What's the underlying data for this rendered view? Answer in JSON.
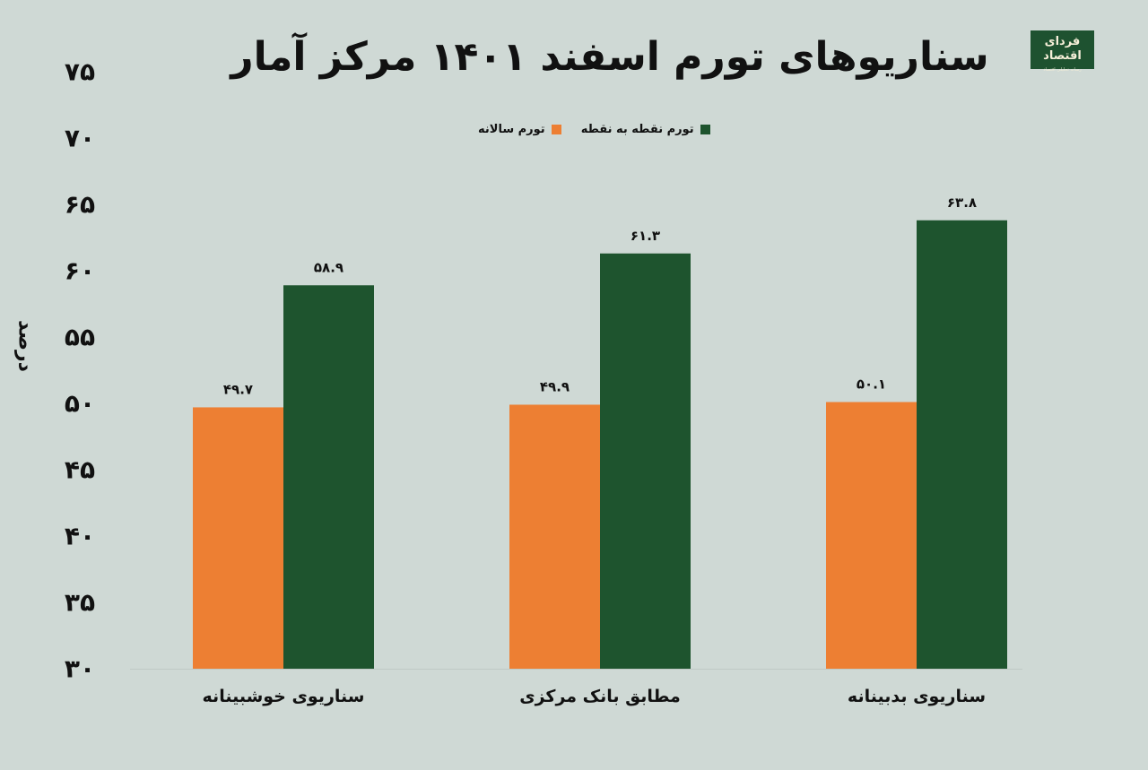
{
  "title": "سناریوهای تورم اسفند ۱۴۰۱ مرکز آمار",
  "logo": {
    "text": "فردای اقتصاد",
    "tagline": "رسانه تحلیلی اقتصاد"
  },
  "legend": [
    {
      "label": "تورم نقطه به نقطه",
      "color": "#1E542E"
    },
    {
      "label": "تورم سالانه",
      "color": "#ED7F33"
    }
  ],
  "chart_data": {
    "type": "bar",
    "title": "سناریوهای تورم اسفند ۱۴۰۱ مرکز آمار",
    "ylabel": "درصد",
    "xlabel": "",
    "ylim": [
      30,
      75
    ],
    "yticks": [
      30,
      35,
      40,
      45,
      50,
      55,
      60,
      65,
      70,
      75
    ],
    "ytick_labels": [
      "۳۰",
      "۳۵",
      "۴۰",
      "۴۵",
      "۵۰",
      "۵۵",
      "۶۰",
      "۶۵",
      "۷۰",
      "۷۵"
    ],
    "grid": false,
    "legend_position": "top-center",
    "categories": [
      "سناریوی خوشبینانه",
      "مطابق بانک مرکزی",
      "سناریوی بدبینانه"
    ],
    "series": [
      {
        "name": "تورم سالانه",
        "color": "#ED7F33",
        "values": [
          49.7,
          49.9,
          50.1
        ],
        "value_labels": [
          "۴۹.۷",
          "۴۹.۹",
          "۵۰.۱"
        ]
      },
      {
        "name": "تورم نقطه به نقطه",
        "color": "#1E542E",
        "values": [
          58.9,
          61.3,
          63.8
        ],
        "value_labels": [
          "۵۸.۹",
          "۶۱.۳",
          "۶۳.۸"
        ]
      }
    ]
  }
}
